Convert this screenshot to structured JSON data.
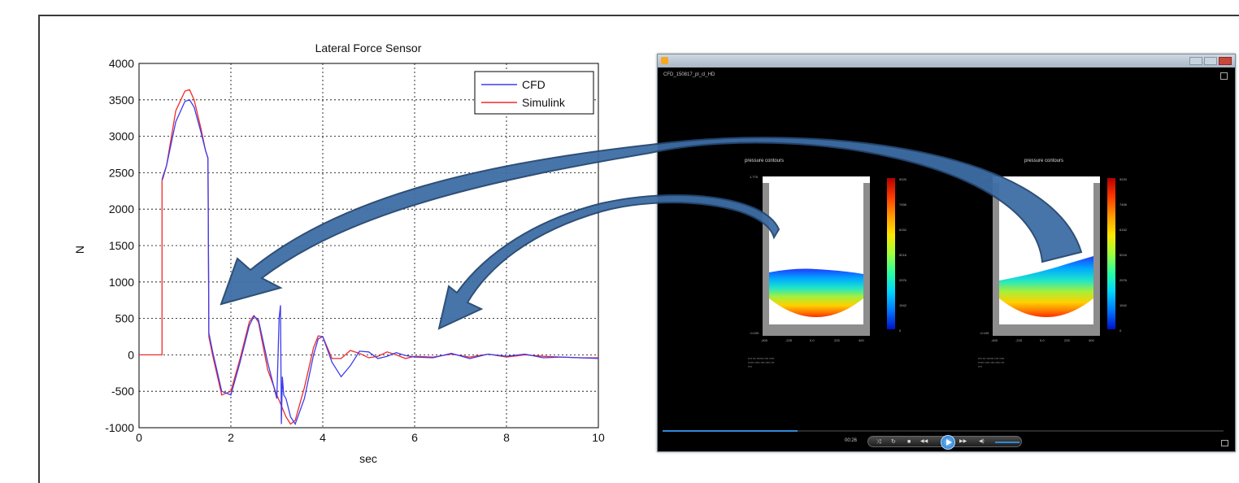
{
  "chart_data": {
    "type": "line",
    "title": "Lateral Force Sensor",
    "xlabel": "sec",
    "ylabel": "N",
    "xlim": [
      0,
      10
    ],
    "ylim": [
      -1000,
      4000
    ],
    "xticks": [
      "0",
      "2",
      "4",
      "6",
      "8",
      "10"
    ],
    "yticks": [
      "-1000",
      "-500",
      "0",
      "500",
      "1000",
      "1500",
      "2000",
      "2500",
      "3000",
      "3500",
      "4000"
    ],
    "grid": true,
    "legend_position": "top-right",
    "series": [
      {
        "name": "CFD",
        "color": "#3c3cf0",
        "x": [
          0.5,
          0.52,
          0.6,
          0.8,
          1.0,
          1.1,
          1.2,
          1.35,
          1.45,
          1.5,
          1.52,
          1.6,
          1.8,
          2.0,
          2.2,
          2.4,
          2.5,
          2.6,
          2.8,
          3.0,
          3.05,
          3.08,
          3.1,
          3.12,
          3.15,
          3.2,
          3.3,
          3.4,
          3.6,
          3.8,
          3.9,
          4.0,
          4.2,
          4.4,
          4.6,
          4.8,
          5.0,
          5.2,
          5.4,
          5.6,
          5.8,
          6.0,
          6.4,
          6.8,
          7.2,
          7.6,
          8.0,
          8.4,
          8.8,
          9.2,
          9.6,
          10.0
        ],
        "y": [
          2400,
          2450,
          2600,
          3200,
          3480,
          3500,
          3400,
          3050,
          2800,
          2700,
          300,
          50,
          -500,
          -550,
          -100,
          400,
          530,
          480,
          -100,
          -600,
          500,
          680,
          -950,
          -300,
          -550,
          -600,
          -850,
          -950,
          -600,
          0,
          220,
          250,
          -100,
          -300,
          -150,
          50,
          40,
          -50,
          -20,
          30,
          -10,
          -30,
          -40,
          20,
          -50,
          10,
          -20,
          10,
          -40,
          -30,
          -40,
          -50
        ]
      },
      {
        "name": "Simulink",
        "color": "#ef2a2a",
        "x": [
          0,
          0.5,
          0.5,
          0.52,
          0.6,
          0.8,
          1.0,
          1.1,
          1.2,
          1.35,
          1.45,
          1.5,
          1.52,
          1.6,
          1.8,
          2.0,
          2.2,
          2.4,
          2.5,
          2.6,
          2.8,
          3.0,
          3.2,
          3.3,
          3.4,
          3.6,
          3.8,
          3.9,
          4.0,
          4.2,
          4.4,
          4.6,
          4.8,
          5.0,
          5.2,
          5.4,
          5.6,
          5.8,
          6.0,
          6.4,
          6.8,
          7.2,
          7.6,
          8.0,
          8.4,
          8.8,
          9.2,
          9.6,
          10.0
        ],
        "y": [
          0,
          0,
          2400,
          2420,
          2600,
          3350,
          3620,
          3640,
          3500,
          3100,
          2800,
          2700,
          250,
          0,
          -550,
          -500,
          -50,
          450,
          540,
          450,
          -200,
          -550,
          -850,
          -950,
          -900,
          -450,
          100,
          260,
          250,
          -50,
          -50,
          60,
          20,
          -40,
          -20,
          40,
          0,
          -50,
          -20,
          -30,
          10,
          -30,
          10,
          -30,
          0,
          -20,
          -30,
          -40,
          -40
        ]
      }
    ]
  },
  "player": {
    "video_title": "CFD_150817_pl_cl_HD",
    "time": "00:26",
    "progress": 0.24,
    "volume": 0.6,
    "controls": {
      "shuffle": "⤨",
      "repeat": "↻",
      "stop": "■",
      "previous": "◀◀",
      "next": "▶▶",
      "volume_icon": "◀)"
    },
    "left_figure": {
      "title": "pressure contours",
      "y_top": "1.775",
      "y_bottom": "-0.100",
      "x_ticks": [
        "-400",
        "-225",
        "0.0",
        "225",
        "400"
      ],
      "colorbar": [
        "9220",
        "7456",
        "6152",
        "5216",
        "2976",
        "1542",
        "0"
      ]
    },
    "right_figure": {
      "title": "pressure contours",
      "y_top": "1.775",
      "y_bottom": "-0.100",
      "x_ticks": [
        "-400",
        "-225",
        "0.0",
        "225",
        "400"
      ],
      "colorbar": [
        "9220",
        "7456",
        "6152",
        "5216",
        "2976",
        "1542",
        "0"
      ]
    }
  },
  "colors": {
    "arrow_fill": "#3e6ea6",
    "arrow_stroke": "#24466f"
  }
}
